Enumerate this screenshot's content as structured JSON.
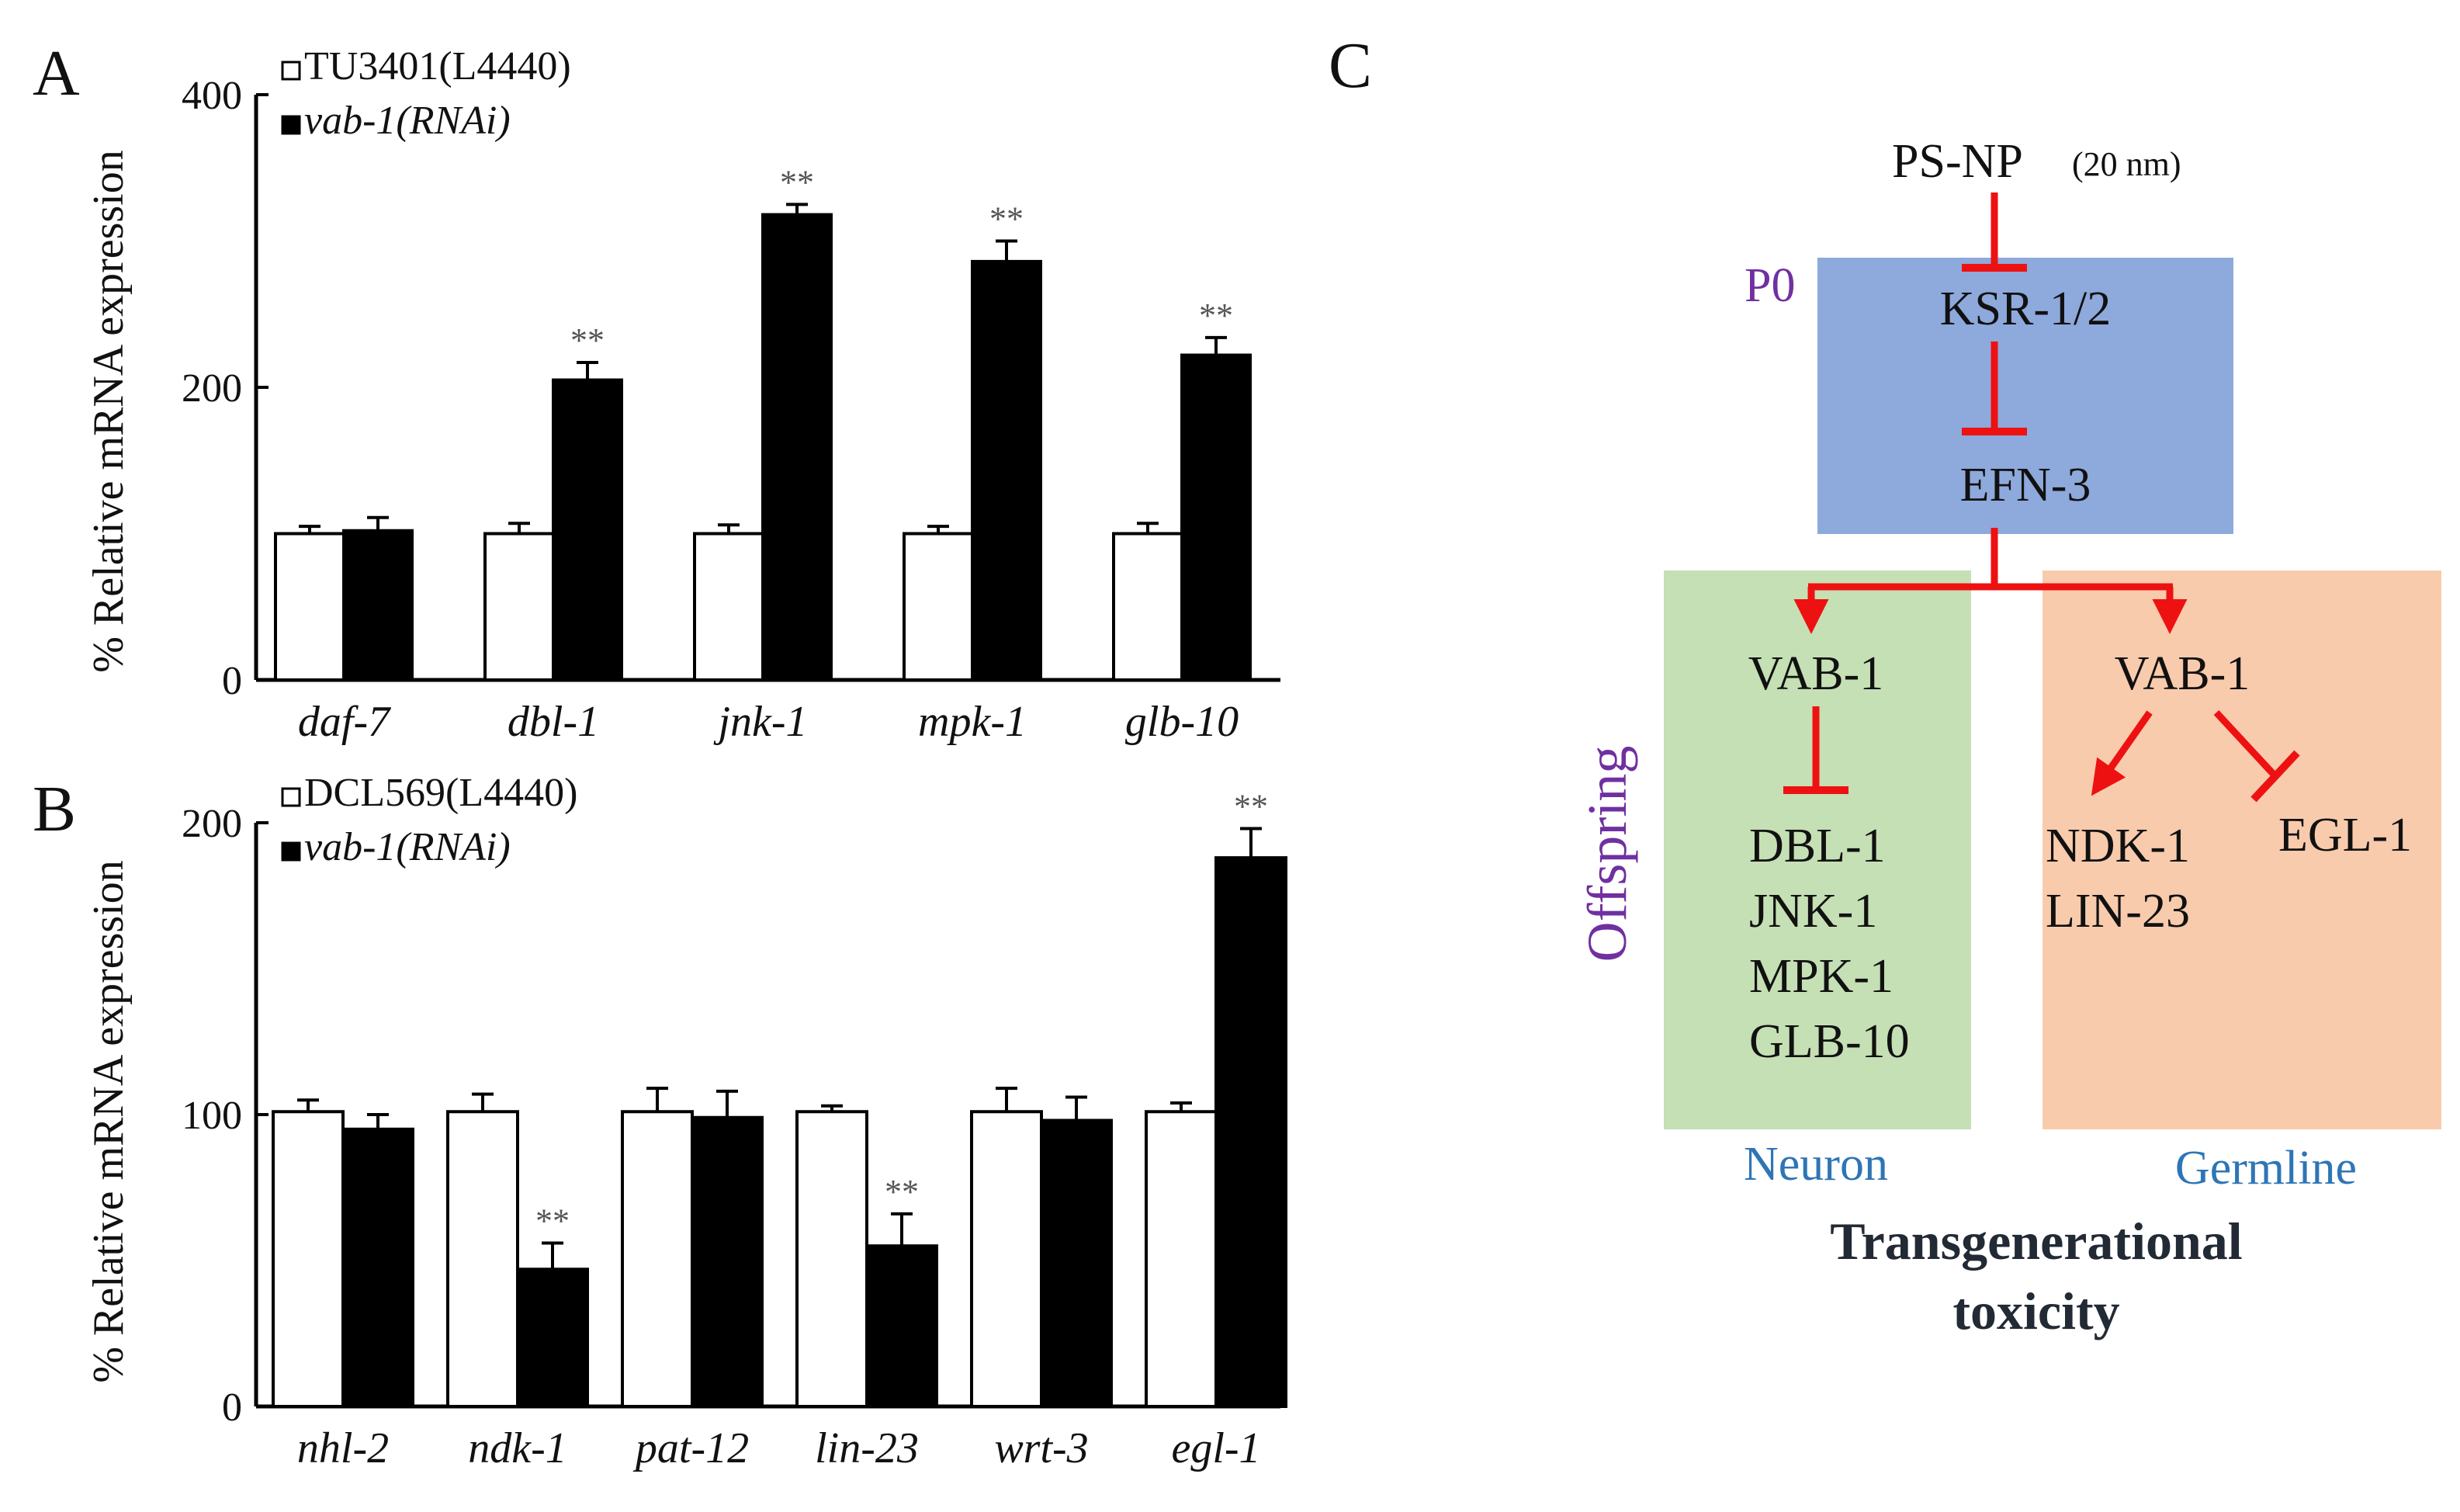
{
  "colors": {
    "bar_control": "#ffffff",
    "bar_rnai": "#000000",
    "inhibit": "#ee1111",
    "p0_box": "#8ea9db",
    "neuron_box": "#c5e0b4",
    "germline_box": "#f8cbad",
    "purple": "#7030a0",
    "blue_label": "#2e75b6",
    "dark_label": "#222a35"
  },
  "chart_data": [
    {
      "panel": "A",
      "type": "bar",
      "ylabel": "% Relative mRNA expression",
      "ylim": [
        0,
        400
      ],
      "yticks": [
        "0",
        "200",
        "400"
      ],
      "categories": [
        "daf-7",
        "dbl-1",
        "jnk-1",
        "mpk-1",
        "glb-10"
      ],
      "series": [
        {
          "name": "TU3401(L4440)",
          "values": [
            100,
            100,
            100,
            100,
            100
          ],
          "errors": [
            5,
            7,
            6,
            5,
            7
          ],
          "sig": [
            "",
            "",
            "",
            "",
            ""
          ]
        },
        {
          "name": "vab-1(RNAi)",
          "values": [
            102,
            205,
            318,
            286,
            222
          ],
          "errors": [
            9,
            12,
            7,
            14,
            12
          ],
          "sig": [
            "",
            "**",
            "**",
            "**",
            "**"
          ]
        }
      ],
      "legend": [
        "TU3401(L4440)",
        "vab-1(RNAi)"
      ]
    },
    {
      "panel": "B",
      "type": "bar",
      "ylabel": "% Relative mRNA expression",
      "ylim": [
        0,
        200
      ],
      "yticks": [
        "0",
        "100",
        "200"
      ],
      "categories": [
        "nhl-2",
        "ndk-1",
        "pat-12",
        "lin-23",
        "wrt-3",
        "egl-1"
      ],
      "series": [
        {
          "name": "DCL569(L4440)",
          "values": [
            101,
            101,
            101,
            101,
            101,
            101
          ],
          "errors": [
            4,
            6,
            8,
            2,
            8,
            3
          ],
          "sig": [
            "",
            "",
            "",
            "",
            "",
            ""
          ]
        },
        {
          "name": "vab-1(RNAi)",
          "values": [
            95,
            47,
            99,
            55,
            98,
            188
          ],
          "errors": [
            5,
            9,
            9,
            11,
            8,
            10
          ],
          "sig": [
            "",
            "**",
            "",
            "**",
            "",
            "**"
          ]
        }
      ],
      "legend": [
        "DCL569(L4440)",
        "vab-1(RNAi)"
      ]
    }
  ],
  "panel_c": {
    "letter": "C",
    "source": "PS-NP",
    "source_size": "(20 nm)",
    "p0_label": "P0",
    "ksr": "KSR-1/2",
    "efn": "EFN-3",
    "offspring_label": "Offspring",
    "neuron": {
      "vab": "VAB-1",
      "targets": [
        "DBL-1",
        "JNK-1",
        "MPK-1",
        "GLB-10"
      ],
      "label": "Neuron"
    },
    "germline": {
      "vab": "VAB-1",
      "activated": [
        "NDK-1",
        "LIN-23"
      ],
      "inhibited": "EGL-1",
      "label": "Germline"
    },
    "caption_line1": "Transgenerational",
    "caption_line2": "toxicity"
  }
}
